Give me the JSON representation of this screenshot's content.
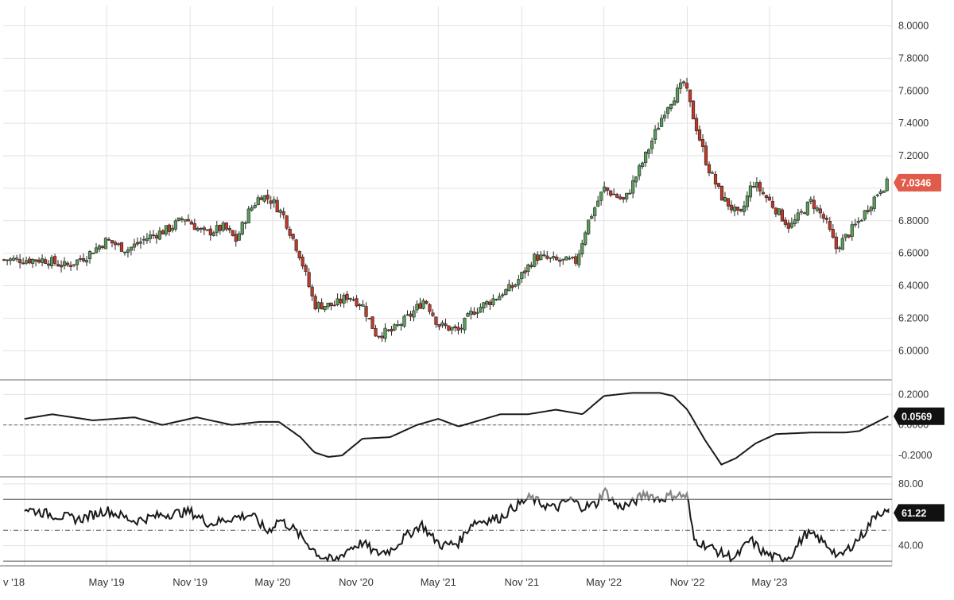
{
  "chart_data": [
    {
      "type": "candlestick",
      "title": "",
      "y_ticks": [
        "8.0000",
        "7.8000",
        "7.6000",
        "7.4000",
        "7.2000",
        "7.0000",
        "6.8000",
        "6.6000",
        "6.4000",
        "6.2000",
        "6.0000"
      ],
      "ylim": [
        5.83,
        8.12
      ],
      "last_value_label": "7.0346",
      "last_value": 7.0346,
      "up_color": "#5a9e5a",
      "down_color": "#c0392b",
      "close_path": [
        [
          "2018-11-01",
          6.56
        ],
        [
          "2018-12-15",
          6.56
        ],
        [
          "2019-02-01",
          6.52
        ],
        [
          "2019-03-15",
          6.58
        ],
        [
          "2019-05-01",
          6.68
        ],
        [
          "2019-06-15",
          6.62
        ],
        [
          "2019-08-01",
          6.7
        ],
        [
          "2019-09-15",
          6.75
        ],
        [
          "2019-10-20",
          6.82
        ],
        [
          "2019-12-01",
          6.72
        ],
        [
          "2020-01-15",
          6.76
        ],
        [
          "2020-02-10",
          6.68
        ],
        [
          "2020-03-10",
          6.86
        ],
        [
          "2020-04-05",
          6.96
        ],
        [
          "2020-05-01",
          6.92
        ],
        [
          "2020-05-25",
          6.83
        ],
        [
          "2020-07-01",
          6.58
        ],
        [
          "2020-08-01",
          6.28
        ],
        [
          "2020-09-15",
          6.28
        ],
        [
          "2020-10-15",
          6.34
        ],
        [
          "2020-11-15",
          6.28
        ],
        [
          "2020-12-15",
          6.1
        ],
        [
          "2021-01-20",
          6.12
        ],
        [
          "2021-03-01",
          6.22
        ],
        [
          "2021-04-01",
          6.32
        ],
        [
          "2021-05-01",
          6.16
        ],
        [
          "2021-06-15",
          6.12
        ],
        [
          "2021-07-15",
          6.24
        ],
        [
          "2021-09-01",
          6.32
        ],
        [
          "2021-10-15",
          6.4
        ],
        [
          "2021-12-01",
          6.58
        ],
        [
          "2022-01-20",
          6.55
        ],
        [
          "2022-03-01",
          6.55
        ],
        [
          "2022-03-25",
          6.78
        ],
        [
          "2022-05-01",
          7.0
        ],
        [
          "2022-06-15",
          6.92
        ],
        [
          "2022-08-01",
          7.2
        ],
        [
          "2022-09-15",
          7.5
        ],
        [
          "2022-10-25",
          7.65
        ],
        [
          "2022-11-10",
          7.48
        ],
        [
          "2022-12-15",
          7.14
        ],
        [
          "2023-01-15",
          6.95
        ],
        [
          "2023-02-25",
          6.82
        ],
        [
          "2023-03-25",
          7.04
        ],
        [
          "2023-05-01",
          6.92
        ],
        [
          "2023-06-15",
          6.76
        ],
        [
          "2023-08-01",
          6.92
        ],
        [
          "2023-09-01",
          6.8
        ],
        [
          "2023-09-25",
          6.63
        ],
        [
          "2023-11-15",
          6.8
        ],
        [
          "2024-01-01",
          7.0
        ],
        [
          "2024-01-18",
          7.0346
        ]
      ]
    },
    {
      "type": "line",
      "title": "",
      "y_ticks": [
        "0.2000",
        "0.0000",
        "-0.2000"
      ],
      "ylim": [
        -0.33,
        0.28
      ],
      "baseline": 0,
      "last_value_label": "0.0569",
      "last_value": 0.0569,
      "series": [
        {
          "points": [
            [
              "2018-11-01",
              0.04
            ],
            [
              "2019-01-01",
              0.07
            ],
            [
              "2019-04-01",
              0.03
            ],
            [
              "2019-07-01",
              0.05
            ],
            [
              "2019-09-01",
              0.0
            ],
            [
              "2019-11-15",
              0.05
            ],
            [
              "2020-02-01",
              0.0
            ],
            [
              "2020-04-01",
              0.02
            ],
            [
              "2020-05-15",
              0.02
            ],
            [
              "2020-07-01",
              -0.08
            ],
            [
              "2020-08-01",
              -0.18
            ],
            [
              "2020-09-01",
              -0.21
            ],
            [
              "2020-10-01",
              -0.2
            ],
            [
              "2020-11-15",
              -0.09
            ],
            [
              "2021-01-15",
              -0.08
            ],
            [
              "2021-03-15",
              0.0
            ],
            [
              "2021-05-01",
              0.04
            ],
            [
              "2021-06-15",
              -0.01
            ],
            [
              "2021-09-15",
              0.07
            ],
            [
              "2021-11-15",
              0.07
            ],
            [
              "2022-01-15",
              0.1
            ],
            [
              "2022-03-15",
              0.07
            ],
            [
              "2022-05-01",
              0.19
            ],
            [
              "2022-07-01",
              0.21
            ],
            [
              "2022-09-01",
              0.21
            ],
            [
              "2022-10-01",
              0.19
            ],
            [
              "2022-11-01",
              0.1
            ],
            [
              "2022-12-10",
              -0.1
            ],
            [
              "2023-01-15",
              -0.26
            ],
            [
              "2023-02-15",
              -0.22
            ],
            [
              "2023-04-01",
              -0.12
            ],
            [
              "2023-05-15",
              -0.06
            ],
            [
              "2023-08-01",
              -0.05
            ],
            [
              "2023-10-15",
              -0.05
            ],
            [
              "2023-11-15",
              -0.04
            ],
            [
              "2024-01-18",
              0.0569
            ]
          ]
        }
      ]
    },
    {
      "type": "line",
      "title": "",
      "y_ticks": [
        "80.00",
        "40.00"
      ],
      "ylim": [
        28,
        83
      ],
      "reference_lines": [
        70,
        50,
        30
      ],
      "last_value_label": "61.22",
      "last_value": 61.22,
      "overbought_color": "#888888",
      "series": [
        {
          "points": [
            [
              "2018-11-01",
              64
            ],
            [
              "2019-01-01",
              60
            ],
            [
              "2019-03-01",
              57
            ],
            [
              "2019-05-01",
              63
            ],
            [
              "2019-07-01",
              56
            ],
            [
              "2019-09-01",
              60
            ],
            [
              "2019-11-01",
              62
            ],
            [
              "2019-12-15",
              54
            ],
            [
              "2020-02-01",
              58
            ],
            [
              "2020-03-15",
              60
            ],
            [
              "2020-04-20",
              49
            ],
            [
              "2020-05-15",
              57
            ],
            [
              "2020-06-15",
              51
            ],
            [
              "2020-07-15",
              42
            ],
            [
              "2020-08-15",
              33
            ],
            [
              "2020-09-15",
              30
            ],
            [
              "2020-10-15",
              38
            ],
            [
              "2020-11-15",
              42
            ],
            [
              "2020-12-15",
              35
            ],
            [
              "2021-01-15",
              37
            ],
            [
              "2021-02-15",
              45
            ],
            [
              "2021-03-25",
              54
            ],
            [
              "2021-04-15",
              46
            ],
            [
              "2021-05-10",
              40
            ],
            [
              "2021-06-15",
              42
            ],
            [
              "2021-07-15",
              55
            ],
            [
              "2021-09-15",
              58
            ],
            [
              "2021-10-15",
              65
            ],
            [
              "2021-11-20",
              71
            ],
            [
              "2021-12-15",
              67
            ],
            [
              "2022-01-15",
              64
            ],
            [
              "2022-02-15",
              70
            ],
            [
              "2022-03-15",
              65
            ],
            [
              "2022-04-15",
              67
            ],
            [
              "2022-05-01",
              76
            ],
            [
              "2022-06-01",
              65
            ],
            [
              "2022-07-01",
              67
            ],
            [
              "2022-08-01",
              74
            ],
            [
              "2022-09-01",
              70
            ],
            [
              "2022-10-01",
              73
            ],
            [
              "2022-11-01",
              72
            ],
            [
              "2022-11-15",
              44
            ],
            [
              "2022-12-15",
              40
            ],
            [
              "2023-01-15",
              35
            ],
            [
              "2023-02-15",
              32
            ],
            [
              "2023-03-20",
              44
            ],
            [
              "2023-04-15",
              36
            ],
            [
              "2023-05-15",
              32
            ],
            [
              "2023-06-15",
              33
            ],
            [
              "2023-07-20",
              48
            ],
            [
              "2023-08-15",
              45
            ],
            [
              "2023-09-15",
              38
            ],
            [
              "2023-10-01",
              32
            ],
            [
              "2023-10-25",
              39
            ],
            [
              "2023-11-25",
              48
            ],
            [
              "2023-12-25",
              62
            ],
            [
              "2024-01-18",
              61.22
            ]
          ]
        }
      ]
    }
  ],
  "x_axis": {
    "range": [
      "2018-09-15",
      "2024-01-26"
    ],
    "ticks": [
      {
        "label": "v '18",
        "date": "2018-11-01"
      },
      {
        "label": "May '19",
        "date": "2019-05-01"
      },
      {
        "label": "Nov '19",
        "date": "2019-11-01"
      },
      {
        "label": "May '20",
        "date": "2020-05-01"
      },
      {
        "label": "Nov '20",
        "date": "2020-11-01"
      },
      {
        "label": "May '21",
        "date": "2021-05-01"
      },
      {
        "label": "Nov '21",
        "date": "2021-11-01"
      },
      {
        "label": "May '22",
        "date": "2022-05-01"
      },
      {
        "label": "Nov '22",
        "date": "2022-11-01"
      },
      {
        "label": "May '23",
        "date": "2023-05-01"
      }
    ],
    "grid": true
  }
}
